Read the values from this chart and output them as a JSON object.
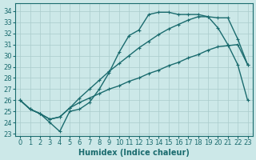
{
  "xlabel": "Humidex (Indice chaleur)",
  "bg_color": "#cce8e8",
  "grid_color": "#aacccc",
  "line_color": "#1a6b6e",
  "xlim": [
    -0.5,
    23.5
  ],
  "ylim": [
    22.8,
    34.7
  ],
  "xticks": [
    0,
    1,
    2,
    3,
    4,
    5,
    6,
    7,
    8,
    9,
    10,
    11,
    12,
    13,
    14,
    15,
    16,
    17,
    18,
    19,
    20,
    21,
    22,
    23
  ],
  "yticks": [
    23,
    24,
    25,
    26,
    27,
    28,
    29,
    30,
    31,
    32,
    33,
    34
  ],
  "upper_x": [
    0,
    1,
    2,
    3,
    4,
    5,
    6,
    7,
    8,
    9,
    10,
    11,
    12,
    13,
    14,
    15,
    16,
    17,
    18,
    19,
    20,
    21,
    22,
    23
  ],
  "upper_y": [
    26.0,
    25.2,
    24.8,
    24.0,
    23.2,
    25.0,
    25.2,
    25.8,
    27.0,
    28.5,
    30.3,
    31.8,
    32.3,
    33.7,
    33.9,
    33.9,
    33.7,
    33.7,
    33.7,
    33.5,
    33.4,
    33.4,
    31.5,
    29.2
  ],
  "mid_x": [
    0,
    1,
    2,
    3,
    4,
    5,
    6,
    7,
    8,
    9,
    10,
    11,
    12,
    13,
    14,
    15,
    16,
    17,
    18,
    19,
    20,
    21,
    22,
    23
  ],
  "mid_y": [
    26.0,
    25.2,
    24.8,
    24.3,
    24.5,
    25.3,
    26.2,
    27.0,
    27.8,
    28.6,
    29.3,
    30.0,
    30.7,
    31.3,
    31.9,
    32.4,
    32.8,
    33.2,
    33.5,
    33.5,
    32.5,
    31.0,
    29.2,
    26.0
  ],
  "diag_x": [
    0,
    1,
    2,
    3,
    4,
    5,
    6,
    7,
    8,
    9,
    10,
    11,
    12,
    13,
    14,
    15,
    16,
    17,
    18,
    19,
    20,
    21,
    22,
    23
  ],
  "diag_y": [
    26.0,
    25.2,
    24.8,
    24.3,
    24.5,
    25.3,
    25.8,
    26.2,
    26.6,
    27.0,
    27.3,
    27.7,
    28.0,
    28.4,
    28.7,
    29.1,
    29.4,
    29.8,
    30.1,
    30.5,
    30.8,
    30.9,
    31.0,
    29.2
  ],
  "xlabel_fontsize": 7,
  "tick_fontsize": 6,
  "linewidth": 1.0,
  "marker_size": 3.0
}
